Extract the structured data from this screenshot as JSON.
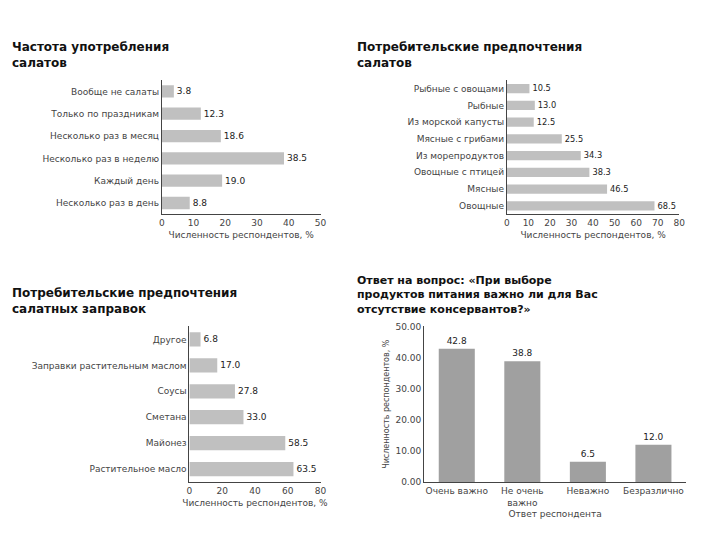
{
  "chart_data": [
    {
      "type": "bar",
      "orientation": "horizontal",
      "title": "Частота употребления\nсалатов",
      "categories": [
        "Вообще не салаты",
        "Только по праздникам",
        "Несколько раз в месяц",
        "Несколько раз в неделю",
        "Каждый день",
        "Несколько раз в день"
      ],
      "values": [
        3.8,
        12.3,
        18.6,
        38.5,
        19.0,
        8.8
      ],
      "value_labels": [
        "3.8",
        "12.3",
        "18.6",
        "38.5",
        "19.0",
        "8.8"
      ],
      "xlabel": "Численность респондентов, %",
      "xlim": [
        0,
        50
      ],
      "xticks": [
        0,
        10,
        20,
        30,
        40,
        50
      ],
      "color": "#c0c0c0",
      "data_labels": true,
      "grid": false
    },
    {
      "type": "bar",
      "orientation": "horizontal",
      "title": "Потребительские предпочтения\nсалатов",
      "categories": [
        "Рыбные с овощами",
        "Рыбные",
        "Из морской капусты",
        "Мясные с грибами",
        "Из морепродуктов",
        "Овощные с птицей",
        "Мясные",
        "Овощные"
      ],
      "values": [
        10.5,
        13.0,
        12.5,
        25.5,
        34.3,
        38.3,
        46.5,
        68.5
      ],
      "value_labels": [
        "10.5",
        "13.0",
        "12.5",
        "25.5",
        "34.3",
        "38.3",
        "46.5",
        "68.5"
      ],
      "xlabel": "Численность респондентов, %",
      "xlim": [
        0,
        80
      ],
      "xticks": [
        0,
        10,
        20,
        30,
        40,
        50,
        60,
        70,
        80
      ],
      "color": "#c0c0c0",
      "data_labels": true,
      "grid": false
    },
    {
      "type": "bar",
      "orientation": "horizontal",
      "title": "Потребительские предпочтения\nсалатных заправок",
      "categories": [
        "Другое",
        "Заправки растительным маслом",
        "Соусы",
        "Сметана",
        "Майонез",
        "Растительное масло"
      ],
      "values": [
        6.8,
        17.0,
        27.8,
        33.0,
        58.5,
        63.5
      ],
      "value_labels": [
        "6.8",
        "17.0",
        "27.8",
        "33.0",
        "58.5",
        "63.5"
      ],
      "xlabel": "Численность респондентов, %",
      "xlim": [
        0,
        80
      ],
      "xticks": [
        0,
        20,
        40,
        60,
        80
      ],
      "color": "#c0c0c0",
      "data_labels": true,
      "grid": false
    },
    {
      "type": "bar",
      "title": "Ответ на вопрос: «При выборе\nпродуктов питания важно ли для Вас\nотсутствие консервантов?»",
      "categories": [
        "Очень важно",
        "Не очень\nважно",
        "Неважно",
        "Безразлично"
      ],
      "values": [
        42.8,
        38.8,
        6.5,
        12.0
      ],
      "value_labels": [
        "42.8",
        "38.8",
        "6.5",
        "12.0"
      ],
      "ylabel": "Численность респондентов, %",
      "xlabel": "Ответ респондента",
      "ylim": [
        0,
        50
      ],
      "yticks": [
        {
          "value": 0,
          "label": "0.00"
        },
        {
          "value": 10,
          "label": "10.00"
        },
        {
          "value": 20,
          "label": "20.00"
        },
        {
          "value": 30,
          "label": "30.00"
        },
        {
          "value": 40,
          "label": "40.00"
        },
        {
          "value": 50,
          "label": "50.00"
        }
      ],
      "color": "#a0a0a0",
      "data_labels": true,
      "grid": false
    }
  ]
}
